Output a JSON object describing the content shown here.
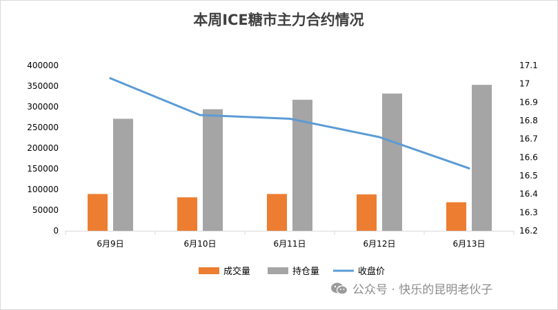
{
  "chart_data": {
    "type": "bar+line",
    "title": "本周ICE糖市主力合约情况",
    "categories": [
      "6月9日",
      "6月10日",
      "6月11日",
      "6月12日",
      "6月13日"
    ],
    "series": [
      {
        "name": "成交量",
        "type": "bar",
        "axis": "left",
        "color": "#ed7d31",
        "values": [
          89000,
          81000,
          89000,
          88000,
          69000
        ]
      },
      {
        "name": "持仓量",
        "type": "bar",
        "axis": "left",
        "color": "#a5a5a5",
        "values": [
          271000,
          294000,
          317000,
          332000,
          353000
        ]
      },
      {
        "name": "收盘价",
        "type": "line",
        "axis": "right",
        "color": "#5b9bd5",
        "values": [
          17.03,
          16.83,
          16.81,
          16.71,
          16.54
        ]
      }
    ],
    "y_left": {
      "min": 0,
      "max": 400000,
      "step": 50000,
      "ticks": [
        "0",
        "50000",
        "100000",
        "150000",
        "200000",
        "250000",
        "300000",
        "350000",
        "400000"
      ]
    },
    "y_right": {
      "min": 16.2,
      "max": 17.1,
      "step": 0.1,
      "ticks": [
        "16.2",
        "16.3",
        "16.4",
        "16.5",
        "16.6",
        "16.7",
        "16.8",
        "16.9",
        "17",
        "17.1"
      ]
    },
    "grid": false,
    "legend": "bottom"
  },
  "watermark": {
    "text": "公众号 · 快乐的昆明老伙子",
    "icon": "wechat-icon"
  }
}
